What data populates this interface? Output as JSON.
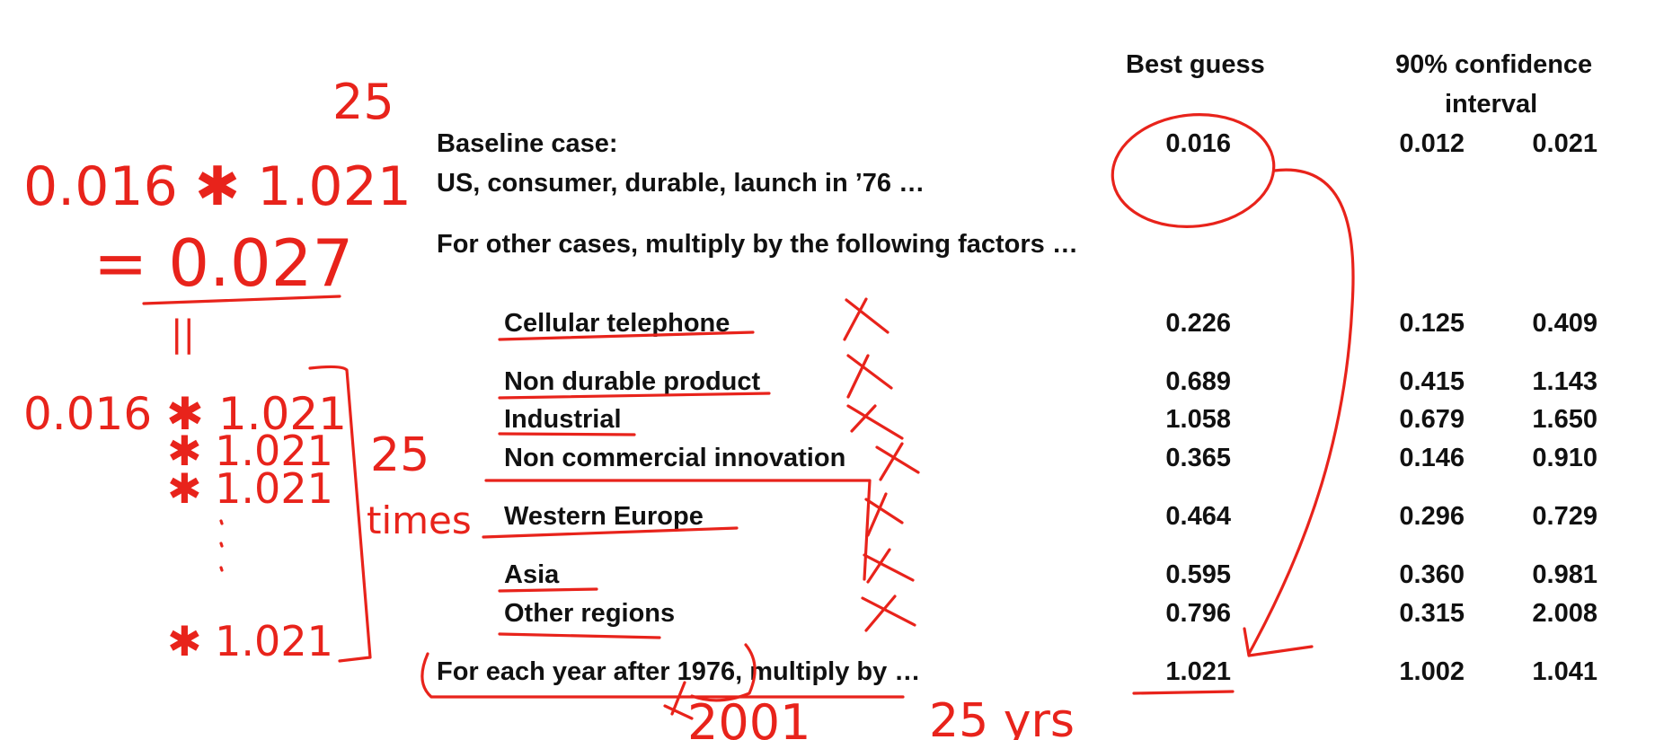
{
  "headers": {
    "best_guess": "Best guess",
    "confidence_line1": "90% confidence",
    "confidence_line2": "interval"
  },
  "baseline": {
    "label_line1": "Baseline case:",
    "label_line2": "US, consumer, durable, launch in ’76 …",
    "best": "0.016",
    "low": "0.012",
    "high": "0.021"
  },
  "instruction": "For other cases, multiply by the following factors …",
  "factors": [
    {
      "label": "Cellular telephone",
      "best": "0.226",
      "low": "0.125",
      "high": "0.409"
    },
    {
      "label": "Non durable product",
      "best": "0.689",
      "low": "0.415",
      "high": "1.143"
    },
    {
      "label": "Industrial",
      "best": "1.058",
      "low": "0.679",
      "high": "1.650"
    },
    {
      "label": "Non commercial innovation",
      "best": "0.365",
      "low": "0.146",
      "high": "0.910"
    },
    {
      "label": "Western Europe",
      "best": "0.464",
      "low": "0.296",
      "high": "0.729"
    },
    {
      "label": "Asia",
      "best": "0.595",
      "low": "0.360",
      "high": "0.981"
    },
    {
      "label": "Other regions",
      "best": "0.796",
      "low": "0.315",
      "high": "2.008"
    }
  ],
  "yearly": {
    "label": "For each year after 1976, multiply by  …",
    "best": "1.021",
    "low": "1.002",
    "high": "1.041"
  },
  "annotations": {
    "exponent": "25",
    "equation": "0.016 ✱ 1.021",
    "result": "= 0.027",
    "equals_sign": "||",
    "expansion_start": "0.016 ✱ 1.021",
    "expansion_line2": "✱ 1.021",
    "expansion_line3": "✱ 1.021",
    "expansion_last": "✱ 1.021",
    "count": "25",
    "times": "times",
    "year": "2001",
    "years": "25 yrs",
    "ink_color": "#e8231b"
  }
}
